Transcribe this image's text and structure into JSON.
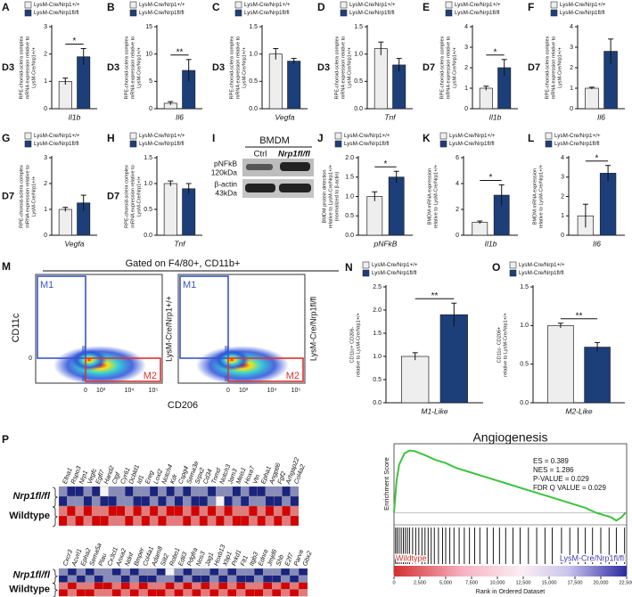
{
  "chart_data": [
    {
      "type": "bar",
      "panel": "A",
      "timepoint": "D3",
      "ylabel": [
        "RPE-choroid-sclera complex",
        "mRNA expression relative to",
        "LysM-Cre/Nrp1+/+"
      ],
      "xlabel": "Il1b",
      "ylim": [
        0,
        3
      ],
      "yticks": [
        0,
        1,
        2,
        3
      ],
      "significance": "*",
      "series": [
        {
          "name": "LysM-Cre/Nrp1+/+",
          "color": "#eeeeee",
          "values": [
            1.0
          ],
          "errors": [
            0.12
          ]
        },
        {
          "name": "LysM-Cre/Nrp1fl/fl",
          "color": "#1c3f7a",
          "values": [
            1.9
          ],
          "errors": [
            0.3
          ]
        }
      ]
    },
    {
      "type": "bar",
      "panel": "B",
      "timepoint": "D3",
      "ylabel": [
        "RPE-choroid-sclera complex",
        "mRNA expression relative to",
        "LysM-Cre/Nrp1+/+"
      ],
      "xlabel": "Il6",
      "ylim": [
        0,
        15
      ],
      "yticks": [
        0,
        5,
        10,
        15
      ],
      "significance": "**",
      "series": [
        {
          "name": "LysM-Cre/Nrp1+/+",
          "color": "#eeeeee",
          "values": [
            1.0
          ],
          "errors": [
            0.3
          ]
        },
        {
          "name": "LysM-Cre/Nrp1fl/fl",
          "color": "#1c3f7a",
          "values": [
            7.0
          ],
          "errors": [
            2.0
          ]
        }
      ]
    },
    {
      "type": "bar",
      "panel": "C",
      "timepoint": "D3",
      "ylabel": [
        "RPE-choroid-sclera complex",
        "mRNA expression relative to",
        "LysM-Cre/Nrp1+/+"
      ],
      "xlabel": "Vegfa",
      "ylim": [
        0,
        1.5
      ],
      "yticks": [
        {
          "value": 0,
          "label": "0.0"
        },
        0.5,
        {
          "value": 1,
          "label": "1.0"
        },
        1.5
      ],
      "series": [
        {
          "name": "LysM-Cre/Nrp1+/+",
          "color": "#eeeeee",
          "values": [
            1.0
          ],
          "errors": [
            0.1
          ]
        },
        {
          "name": "LysM-Cre/Nrp1fl/fl",
          "color": "#1c3f7a",
          "values": [
            0.87
          ],
          "errors": [
            0.05
          ]
        }
      ]
    },
    {
      "type": "bar",
      "panel": "D",
      "timepoint": "D3",
      "ylabel": [
        "RPE-choroid-sclera complex",
        "mRNA expression relative to",
        "LysM-Cre/Nrp1+/+"
      ],
      "xlabel": "Tnf",
      "ylim": [
        0,
        1.5
      ],
      "yticks": [
        {
          "value": 0,
          "label": "0.0"
        },
        0.5,
        {
          "value": 1,
          "label": "1.0"
        },
        1.5
      ],
      "series": [
        {
          "name": "LysM-Cre/Nrp1+/+",
          "color": "#eeeeee",
          "values": [
            1.1
          ],
          "errors": [
            0.12
          ]
        },
        {
          "name": "LysM-Cre/Nrp1fl/fl",
          "color": "#1c3f7a",
          "values": [
            0.8
          ],
          "errors": [
            0.12
          ]
        }
      ]
    },
    {
      "type": "bar",
      "panel": "E",
      "timepoint": "D7",
      "ylabel": [
        "RPE-choroid-sclera complex",
        "mRNA expression relative to",
        "LysM-Cre/Nrp1+/+"
      ],
      "xlabel": "Il1b",
      "ylim": [
        0,
        4
      ],
      "yticks": [
        0,
        1,
        2,
        3,
        4
      ],
      "significance": "*",
      "series": [
        {
          "name": "LysM-Cre/Nrp1+/+",
          "color": "#eeeeee",
          "values": [
            1.0
          ],
          "errors": [
            0.1
          ]
        },
        {
          "name": "LysM-Cre/Nrp1fl/fl",
          "color": "#1c3f7a",
          "values": [
            2.0
          ],
          "errors": [
            0.4
          ]
        }
      ]
    },
    {
      "type": "bar",
      "panel": "F",
      "timepoint": "D7",
      "ylabel": [
        "RPE-choroid-sclera complex",
        "mRNA expression relative to",
        "LysM-Cre/Nrp1+/+"
      ],
      "xlabel": "Il6",
      "ylim": [
        0,
        4
      ],
      "yticks": [
        0,
        1,
        2,
        3,
        4
      ],
      "series": [
        {
          "name": "LysM-Cre/Nrp1+/+",
          "color": "#eeeeee",
          "values": [
            1.0
          ],
          "errors": [
            0.05
          ]
        },
        {
          "name": "LysM-Cre/Nrp1fl/fl",
          "color": "#1c3f7a",
          "values": [
            2.8
          ],
          "errors": [
            0.6
          ]
        }
      ]
    },
    {
      "type": "bar",
      "panel": "G",
      "timepoint": "D7",
      "ylabel": [
        "RPE-choroid-sclera complex",
        "mRNA expression relative to",
        "LysM-Cre/Nrp1+/+"
      ],
      "xlabel": "Vegfa",
      "ylim": [
        0,
        3
      ],
      "yticks": [
        0,
        1,
        2,
        3
      ],
      "series": [
        {
          "name": "LysM-Cre/Nrp1+/+",
          "color": "#eeeeee",
          "values": [
            1.0
          ],
          "errors": [
            0.08
          ]
        },
        {
          "name": "LysM-Cre/Nrp1fl/fl",
          "color": "#1c3f7a",
          "values": [
            1.25
          ],
          "errors": [
            0.3
          ]
        }
      ]
    },
    {
      "type": "bar",
      "panel": "H",
      "timepoint": "D7",
      "ylabel": [
        "RPE-choroid-sclera complex",
        "mRNA expression relative to",
        "LysM-Cre/Nrp1+/+"
      ],
      "xlabel": "Tnf",
      "ylim": [
        0,
        1.5
      ],
      "yticks": [
        {
          "value": 0,
          "label": "0.0"
        },
        0.5,
        {
          "value": 1,
          "label": "1.0"
        },
        1.5
      ],
      "series": [
        {
          "name": "LysM-Cre/Nrp1+/+",
          "color": "#eeeeee",
          "values": [
            1.0
          ],
          "errors": [
            0.05
          ]
        },
        {
          "name": "LysM-Cre/Nrp1fl/fl",
          "color": "#1c3f7a",
          "values": [
            0.9
          ],
          "errors": [
            0.1
          ]
        }
      ]
    },
    {
      "type": "bar",
      "panel": "J",
      "ylabel": [
        "BMDM protein detection",
        "relative to LysM-Cre/Nrp1+/+",
        "(normalized to β-actin)"
      ],
      "xlabel": "pNFkB",
      "ylim": [
        0,
        2
      ],
      "yticks": [
        {
          "value": 0,
          "label": "0.0"
        },
        0.5,
        {
          "value": 1,
          "label": "1.0"
        },
        1.5,
        {
          "value": 2,
          "label": "2.0"
        }
      ],
      "significance": "*",
      "series": [
        {
          "name": "LysM-Cre/Nrp1+/+",
          "color": "#eeeeee",
          "values": [
            1.0
          ],
          "errors": [
            0.12
          ]
        },
        {
          "name": "LysM-Cre/Nrp1fl/fl",
          "color": "#1c3f7a",
          "values": [
            1.5
          ],
          "errors": [
            0.15
          ]
        }
      ]
    },
    {
      "type": "bar",
      "panel": "K",
      "ylabel": [
        "BMDM mRNA expression",
        "relative to LysM-Cre/Nrp1+/+"
      ],
      "xlabel": "Il1b",
      "ylim": [
        0,
        6
      ],
      "yticks": [
        0,
        2,
        4,
        6
      ],
      "significance": "*",
      "series": [
        {
          "name": "LysM-Cre/Nrp1+/+",
          "color": "#eeeeee",
          "values": [
            1.0
          ],
          "errors": [
            0.1
          ]
        },
        {
          "name": "LysM-Cre/Nrp1fl/fl",
          "color": "#1c3f7a",
          "values": [
            3.1
          ],
          "errors": [
            0.8
          ]
        }
      ]
    },
    {
      "type": "bar",
      "panel": "L",
      "ylabel": [
        "BMDM mRNA expression",
        "relative to LysM-Cre/Nrp1+/+"
      ],
      "xlabel": "Il6",
      "ylim": [
        0,
        4
      ],
      "yticks": [
        0,
        1,
        2,
        3,
        4
      ],
      "significance": "*",
      "series": [
        {
          "name": "LysM-Cre/Nrp1+/+",
          "color": "#eeeeee",
          "values": [
            1.0
          ],
          "errors": [
            0.6
          ]
        },
        {
          "name": "LysM-Cre/Nrp1fl/fl",
          "color": "#1c3f7a",
          "values": [
            3.2
          ],
          "errors": [
            0.4
          ]
        }
      ]
    },
    {
      "type": "bar",
      "panel": "N",
      "ylabel": [
        "CD11c+ CD206-",
        "relative to LysM-Cre/Nrp1+/+"
      ],
      "xlabel": "M1-Like",
      "ylim": [
        0,
        2.5
      ],
      "yticks": [
        {
          "value": 0,
          "label": "0.0"
        },
        0.5,
        {
          "value": 1,
          "label": "1.0"
        },
        1.5,
        {
          "value": 2,
          "label": "2.0"
        },
        2.5
      ],
      "significance": "**",
      "series": [
        {
          "name": "LysM-Cre/Nrp1+/+",
          "color": "#eeeeee",
          "values": [
            1.0
          ],
          "errors": [
            0.08
          ]
        },
        {
          "name": "LysM-Cre/Nrp1fl/fl",
          "color": "#1c3f7a",
          "values": [
            1.9
          ],
          "errors": [
            0.25
          ]
        }
      ]
    },
    {
      "type": "bar",
      "panel": "O",
      "ylabel": [
        "CD11c- CD206+",
        "relative to LysM-Cre/Nrp1+/+"
      ],
      "xlabel": "M2-Like",
      "ylim": [
        0,
        1.5
      ],
      "yticks": [
        {
          "value": 0,
          "label": "0.0"
        },
        0.5,
        {
          "value": 1,
          "label": "1.0"
        },
        1.5
      ],
      "significance": "**",
      "series": [
        {
          "name": "LysM-Cre/Nrp1+/+",
          "color": "#eeeeee",
          "values": [
            1.0
          ],
          "errors": [
            0.03
          ]
        },
        {
          "name": "LysM-Cre/Nrp1fl/fl",
          "color": "#1c3f7a",
          "values": [
            0.72
          ],
          "errors": [
            0.06
          ]
        }
      ]
    },
    {
      "type": "heatmap",
      "panel": "P",
      "groups": [
        "Nrp1fl/fl",
        "Wildtype"
      ],
      "colors": [
        "#1a237e",
        "#f4f4f4",
        "#d50000"
      ],
      "zlim": [
        -2,
        2
      ],
      "columns": [
        "Efna1",
        "Rspo3",
        "Nrp1",
        "Vegfc",
        "Egfl7",
        "Hand2",
        "Ctgf",
        "Cyr61",
        "Dcbld1",
        "Id1",
        "Ereg",
        "Loxl2",
        "Notch4",
        "Kdr",
        "Cspg4",
        "Sema3e",
        "Srpx2",
        "Cd34",
        "Tnmd",
        "Notch3",
        "Jam3",
        "Meis1",
        "Hoxa7",
        "Vtn",
        "Epha1",
        "Angptl6",
        "Fgf2",
        "Arhgap22",
        "Col4a2"
      ],
      "values": [
        [
          -1,
          -2,
          -2,
          -1,
          -2,
          0,
          -1,
          -1,
          -2,
          -1,
          -1,
          -2,
          -1,
          -2,
          -1,
          -2,
          -1,
          -1,
          -2,
          -1,
          -1,
          -2,
          -1,
          -2,
          -2,
          -1,
          -1,
          -2,
          -1
        ],
        [
          -2,
          -1,
          -1,
          -2,
          -1,
          -2,
          -2,
          -1,
          -1,
          -2,
          -2,
          -1,
          -2,
          -1,
          -2,
          -1,
          -2,
          -2,
          -1,
          0,
          -2,
          -1,
          -2,
          -1,
          -1,
          -2,
          -2,
          -1,
          -2
        ],
        [
          1,
          2,
          1,
          2,
          1,
          1,
          2,
          2,
          1,
          2,
          1,
          2,
          1,
          2,
          2,
          1,
          2,
          1,
          2,
          1,
          2,
          1,
          1,
          2,
          1,
          2,
          1,
          2,
          1
        ],
        [
          2,
          1,
          2,
          1,
          2,
          2,
          1,
          1,
          2,
          1,
          2,
          1,
          2,
          1,
          1,
          2,
          1,
          2,
          1,
          2,
          1,
          2,
          2,
          1,
          2,
          1,
          2,
          1,
          2
        ]
      ]
    },
    {
      "type": "heatmap",
      "groups": [
        "Nrp1fl/fl",
        "Wildtype"
      ],
      "colors": [
        "#1a237e",
        "#f4f4f4",
        "#d50000"
      ],
      "zlim": [
        -2,
        2
      ],
      "columns": [
        "Cxcr3",
        "Acvrl1",
        "Epha2",
        "Sema5a",
        "Plau",
        "Cx3cl1",
        "Anxa2",
        "Ndnf",
        "Bmper",
        "Col4a1",
        "Adam8",
        "Slit2",
        "Robo1",
        "Edil3",
        "Pdgfra",
        "Nos3",
        "Jag1",
        "Hoxb13",
        "Xbp1",
        "Prkd1",
        "Flt1",
        "Itgb3",
        "Ednra",
        "Jmjd6",
        "Shb",
        "E2f7",
        "Parva",
        "Gbx2"
      ],
      "values": [
        [
          -1,
          -2,
          -1,
          -2,
          -1,
          -1,
          -2,
          -1,
          -2,
          -1,
          -1,
          -2,
          0,
          -1,
          -2,
          -1,
          -1,
          -2,
          -1,
          -2,
          -1,
          -1,
          -2,
          -1,
          -1,
          -2,
          -1,
          -2
        ],
        [
          -2,
          -1,
          -2,
          -1,
          -2,
          -1,
          -1,
          -2,
          -1,
          -2,
          -2,
          -1,
          -1,
          -2,
          -1,
          -2,
          -2,
          -1,
          -2,
          -1,
          -2,
          -2,
          -1,
          -2,
          -2,
          -1,
          -2,
          -1
        ],
        [
          1,
          2,
          1,
          1,
          2,
          2,
          1,
          2,
          1,
          2,
          1,
          1,
          2,
          1,
          2,
          1,
          2,
          1,
          2,
          1,
          2,
          1,
          1,
          2,
          1,
          2,
          1,
          2
        ],
        [
          2,
          1,
          2,
          2,
          1,
          1,
          2,
          1,
          2,
          1,
          2,
          2,
          1,
          2,
          1,
          2,
          1,
          2,
          1,
          2,
          1,
          2,
          2,
          1,
          2,
          1,
          2,
          1
        ]
      ]
    },
    {
      "type": "line",
      "title": "Angiogenesis",
      "ylabel": "Enrichment Score",
      "xlabel": "Rank in Ordered Dataset",
      "color": "#3cc33c",
      "annotations": [
        "ES = 0.389",
        "NES = 1.286",
        "P-VALUE = 0.029",
        "FDR Q VALUE = 0.029"
      ],
      "groups": [
        {
          "name": "Wildtype",
          "color": "#d32f2f"
        },
        {
          "name": "LysM-Cre/Nrp1fl/fl",
          "color": "#3f3fa8"
        }
      ],
      "x": [
        0,
        250,
        500,
        1000,
        1500,
        2000,
        3000,
        4000,
        5000,
        6000,
        7500,
        9000,
        10000,
        11000,
        12500,
        14000,
        15000,
        16000,
        17500,
        18500,
        19500,
        20500,
        21000,
        21500,
        22000,
        22400
      ],
      "values": [
        0,
        0.2,
        0.3,
        0.37,
        0.389,
        0.385,
        0.36,
        0.33,
        0.31,
        0.28,
        0.25,
        0.22,
        0.2,
        0.18,
        0.15,
        0.12,
        0.1,
        0.08,
        0.05,
        0.03,
        0.0,
        -0.02,
        -0.03,
        -0.05,
        -0.03,
        0
      ],
      "hits": [
        150,
        300,
        500,
        700,
        900,
        1100,
        1300,
        1500,
        1800,
        2100,
        2400,
        2700,
        3000,
        3300,
        3600,
        3900,
        4300,
        4700,
        5000,
        5400,
        5800,
        6300,
        6800,
        7300,
        7800,
        8300,
        9000,
        9600,
        10200,
        10800,
        11500,
        12200,
        13000,
        13800,
        14600,
        15300,
        16200,
        17000,
        17800,
        18500,
        19200,
        20000,
        20800,
        21500,
        22300
      ],
      "xlim": [
        0,
        22500
      ],
      "ylim": [
        -0.06,
        0.42
      ],
      "xticks": [
        0,
        {
          "value": 2500,
          "label": "2,500"
        },
        {
          "value": 5000,
          "label": "5,000"
        },
        {
          "value": 7500,
          "label": "7,500"
        },
        {
          "value": 10000,
          "label": "10,000"
        },
        {
          "value": 12500,
          "label": "12,500"
        },
        {
          "value": 15000,
          "label": "15,000"
        },
        {
          "value": 17500,
          "label": "17,500"
        },
        {
          "value": 20000,
          "label": "20,000"
        },
        {
          "value": 22500,
          "label": "22,500"
        }
      ]
    }
  ],
  "blot": {
    "panel": "I",
    "title": "BMDM",
    "lanes": [
      "Ctrl",
      "Nrp1fl/fl"
    ],
    "bands": [
      {
        "name": "pNFkB",
        "size": "120kDa"
      },
      {
        "name": "β-actin",
        "size": "43kDa"
      }
    ]
  },
  "flow": {
    "panel": "M",
    "title": "Gated on F4/80+, CD11b+",
    "ylabel": "CD11c",
    "xlabel": "CD206",
    "gates": [
      "M1",
      "M2"
    ],
    "xticks": [
      "0",
      "10³",
      "10⁴",
      "10⁵"
    ],
    "yticks": [
      "0"
    ],
    "samples": [
      "LysM-Cre/Nrp1+/+",
      "LysM-Cre/Nrp1fl/fl"
    ]
  }
}
